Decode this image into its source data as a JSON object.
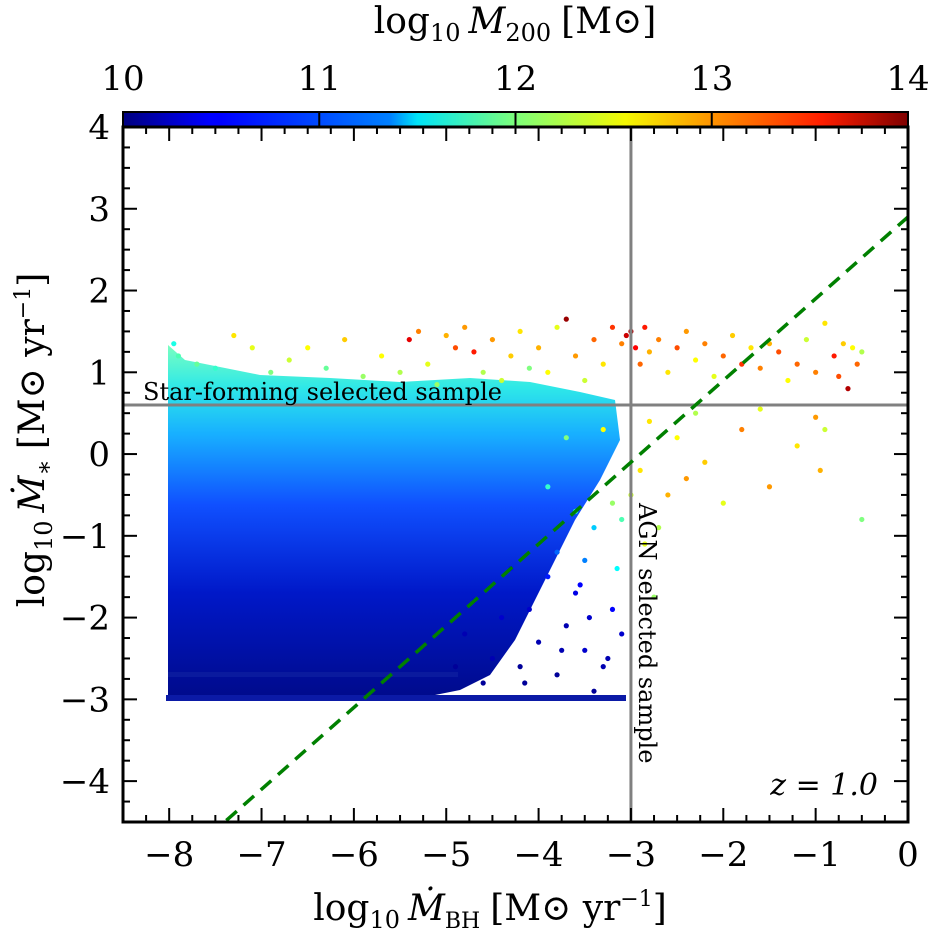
{
  "chart_data": {
    "type": "scatter",
    "xlabel": {
      "prefix": "log",
      "sub": "10",
      "var": "Ṁ",
      "varsub": "BH",
      "unit": "[M⊙ yr",
      "exp": "−1",
      "close": "]"
    },
    "ylabel": {
      "prefix": "log",
      "sub": "10",
      "var": "Ṁ",
      "varsub": "∗",
      "unit": "[M⊙ yr",
      "exp": "−1",
      "close": "]"
    },
    "colorbar_label": {
      "prefix": "log",
      "sub": "10",
      "var": "M",
      "varsub": "200",
      "unit": "[M⊙]"
    },
    "xlim": [
      -8.5,
      0
    ],
    "ylim": [
      -4.5,
      4
    ],
    "clim": [
      10,
      14
    ],
    "xticks": [
      -8,
      -7,
      -6,
      -5,
      -4,
      -3,
      -2,
      -1,
      0
    ],
    "yticks": [
      -4,
      -3,
      -2,
      -1,
      0,
      1,
      2,
      3,
      4
    ],
    "cticks": [
      10,
      11,
      12,
      13,
      14
    ],
    "xtick_labels": [
      "−8",
      "−7",
      "−6",
      "−5",
      "−4",
      "−3",
      "−2",
      "−1",
      "0"
    ],
    "ytick_labels": [
      "−4",
      "−3",
      "−2",
      "−1",
      "0",
      "1",
      "2",
      "3",
      "4"
    ],
    "ctick_labels": [
      "10",
      "11",
      "12",
      "13",
      "14"
    ],
    "reference_lines": {
      "star_forming_threshold_y": 0.6,
      "agn_threshold_x": -3.0,
      "dashed_line": {
        "slope": 1.0,
        "intercept": 2.9,
        "color": "#008000"
      }
    },
    "annotations": {
      "star_forming": "Star-forming selected sample",
      "agn": "AGN selected sample",
      "redshift": "z = 1.0"
    },
    "points": [
      [
        -7.95,
        1.35,
        11.6
      ],
      [
        -7.9,
        1.2,
        11.8
      ],
      [
        -7.7,
        1.1,
        11.9
      ],
      [
        -7.5,
        1.05,
        11.7
      ],
      [
        -7.3,
        1.45,
        12.6
      ],
      [
        -7.1,
        1.3,
        12.4
      ],
      [
        -6.9,
        1.0,
        12.0
      ],
      [
        -6.7,
        1.15,
        12.3
      ],
      [
        -6.5,
        1.3,
        12.5
      ],
      [
        -6.3,
        1.05,
        11.9
      ],
      [
        -6.1,
        1.4,
        12.7
      ],
      [
        -5.9,
        0.95,
        12.1
      ],
      [
        -5.7,
        1.2,
        12.5
      ],
      [
        -5.5,
        1.0,
        12.2
      ],
      [
        -5.4,
        1.4,
        13.6
      ],
      [
        -5.3,
        1.5,
        13.0
      ],
      [
        -5.2,
        1.1,
        12.4
      ],
      [
        -5.1,
        0.85,
        12.1
      ],
      [
        -5.0,
        1.45,
        12.8
      ],
      [
        -4.9,
        1.3,
        13.2
      ],
      [
        -4.8,
        1.55,
        12.9
      ],
      [
        -4.7,
        1.25,
        13.4
      ],
      [
        -4.6,
        1.0,
        12.2
      ],
      [
        -4.5,
        1.4,
        12.9
      ],
      [
        -4.4,
        0.9,
        12.3
      ],
      [
        -4.3,
        1.2,
        12.7
      ],
      [
        -4.2,
        1.5,
        12.6
      ],
      [
        -4.1,
        1.05,
        12.0
      ],
      [
        -4.0,
        1.3,
        12.8
      ],
      [
        -3.9,
        1.0,
        12.5
      ],
      [
        -3.8,
        1.55,
        12.4
      ],
      [
        -3.7,
        1.65,
        13.9
      ],
      [
        -3.6,
        1.2,
        12.9
      ],
      [
        -3.5,
        0.9,
        12.3
      ],
      [
        -3.4,
        1.4,
        13.1
      ],
      [
        -3.3,
        1.1,
        12.6
      ],
      [
        -3.2,
        1.55,
        13.3
      ],
      [
        -3.1,
        1.35,
        13.0
      ],
      [
        -3.05,
        1.45,
        13.7
      ],
      [
        -3.0,
        1.5,
        13.8
      ],
      [
        -2.95,
        1.3,
        13.5
      ],
      [
        -2.9,
        1.1,
        13.1
      ],
      [
        -2.85,
        1.55,
        13.4
      ],
      [
        -2.8,
        1.25,
        12.8
      ],
      [
        -2.7,
        1.4,
        13.0
      ],
      [
        -2.6,
        1.0,
        12.6
      ],
      [
        -2.5,
        1.3,
        13.2
      ],
      [
        -2.4,
        1.5,
        12.9
      ],
      [
        -2.3,
        1.15,
        12.5
      ],
      [
        -2.2,
        1.35,
        13.0
      ],
      [
        -2.1,
        0.95,
        12.4
      ],
      [
        -2.0,
        1.2,
        13.1
      ],
      [
        -1.9,
        1.45,
        12.7
      ],
      [
        -1.8,
        1.1,
        13.3
      ],
      [
        -1.7,
        1.3,
        12.6
      ],
      [
        -1.6,
        1.05,
        13.0
      ],
      [
        -1.5,
        1.35,
        12.8
      ],
      [
        -1.4,
        1.25,
        13.2
      ],
      [
        -1.3,
        0.9,
        12.5
      ],
      [
        -1.2,
        1.1,
        13.1
      ],
      [
        -1.1,
        1.4,
        12.3
      ],
      [
        -1.0,
        1.0,
        13.0
      ],
      [
        -0.9,
        1.6,
        12.6
      ],
      [
        -0.8,
        1.2,
        13.4
      ],
      [
        -0.75,
        0.95,
        13.2
      ],
      [
        -0.7,
        1.35,
        12.7
      ],
      [
        -0.65,
        0.8,
        13.8
      ],
      [
        -0.6,
        1.3,
        12.5
      ],
      [
        -0.55,
        1.1,
        13.1
      ],
      [
        -0.5,
        1.25,
        12.2
      ],
      [
        -0.5,
        -0.8,
        12.0
      ],
      [
        -0.9,
        0.3,
        12.3
      ],
      [
        -0.95,
        -0.2,
        12.8
      ],
      [
        -1.2,
        0.1,
        12.6
      ],
      [
        -1.5,
        -0.4,
        12.9
      ],
      [
        -1.8,
        0.3,
        13.0
      ],
      [
        -2.0,
        -0.6,
        12.4
      ],
      [
        -2.2,
        -0.1,
        12.7
      ],
      [
        -2.4,
        -0.3,
        12.9
      ],
      [
        -2.5,
        0.2,
        12.5
      ],
      [
        -2.6,
        -0.5,
        12.8
      ],
      [
        -2.7,
        -0.9,
        12.2
      ],
      [
        -2.75,
        -1.75,
        12.1
      ],
      [
        -2.85,
        -1.1,
        12.4
      ],
      [
        -2.9,
        -0.2,
        12.6
      ],
      [
        -3.0,
        -0.5,
        12.3
      ],
      [
        -3.1,
        -0.8,
        11.8
      ],
      [
        -3.15,
        -1.4,
        11.5
      ],
      [
        -3.2,
        -0.6,
        12.1
      ],
      [
        -3.3,
        0.3,
        12.5
      ],
      [
        -3.4,
        -0.9,
        11.3
      ],
      [
        -3.5,
        -1.3,
        11.0
      ],
      [
        -3.6,
        -0.7,
        11.6
      ],
      [
        -3.7,
        0.2,
        12.0
      ],
      [
        -3.8,
        -1.2,
        10.9
      ],
      [
        -3.9,
        -0.4,
        11.7
      ],
      [
        -2.8,
        0.4,
        12.6
      ],
      [
        -1.6,
        0.55,
        12.4
      ],
      [
        -1.0,
        0.45,
        12.9
      ],
      [
        -2.3,
        0.5,
        12.2
      ],
      [
        -3.1,
        -2.2,
        10.3
      ],
      [
        -3.2,
        -1.9,
        10.5
      ],
      [
        -3.3,
        -2.6,
        10.2
      ],
      [
        -3.4,
        -2.9,
        10.1
      ],
      [
        -3.5,
        -2.4,
        10.3
      ],
      [
        -3.6,
        -1.7,
        10.4
      ],
      [
        -3.7,
        -2.1,
        10.2
      ],
      [
        -3.8,
        -2.7,
        10.1
      ],
      [
        -3.9,
        -1.5,
        10.6
      ],
      [
        -4.0,
        -2.3,
        10.2
      ],
      [
        -4.1,
        -1.9,
        10.3
      ],
      [
        -4.2,
        -2.6,
        10.1
      ],
      [
        -4.3,
        -1.4,
        10.5
      ],
      [
        -4.4,
        -2.0,
        10.3
      ],
      [
        -4.5,
        -2.5,
        10.2
      ],
      [
        -4.6,
        -2.8,
        10.1
      ],
      [
        -4.7,
        -1.8,
        10.4
      ],
      [
        -4.8,
        -2.2,
        10.2
      ],
      [
        -4.9,
        -2.6,
        10.1
      ],
      [
        -3.45,
        -2.0,
        10.3
      ],
      [
        -3.55,
        -1.6,
        10.5
      ],
      [
        -3.25,
        -2.5,
        10.2
      ],
      [
        -3.75,
        -2.4,
        10.2
      ],
      [
        -4.15,
        -2.8,
        10.1
      ]
    ]
  }
}
